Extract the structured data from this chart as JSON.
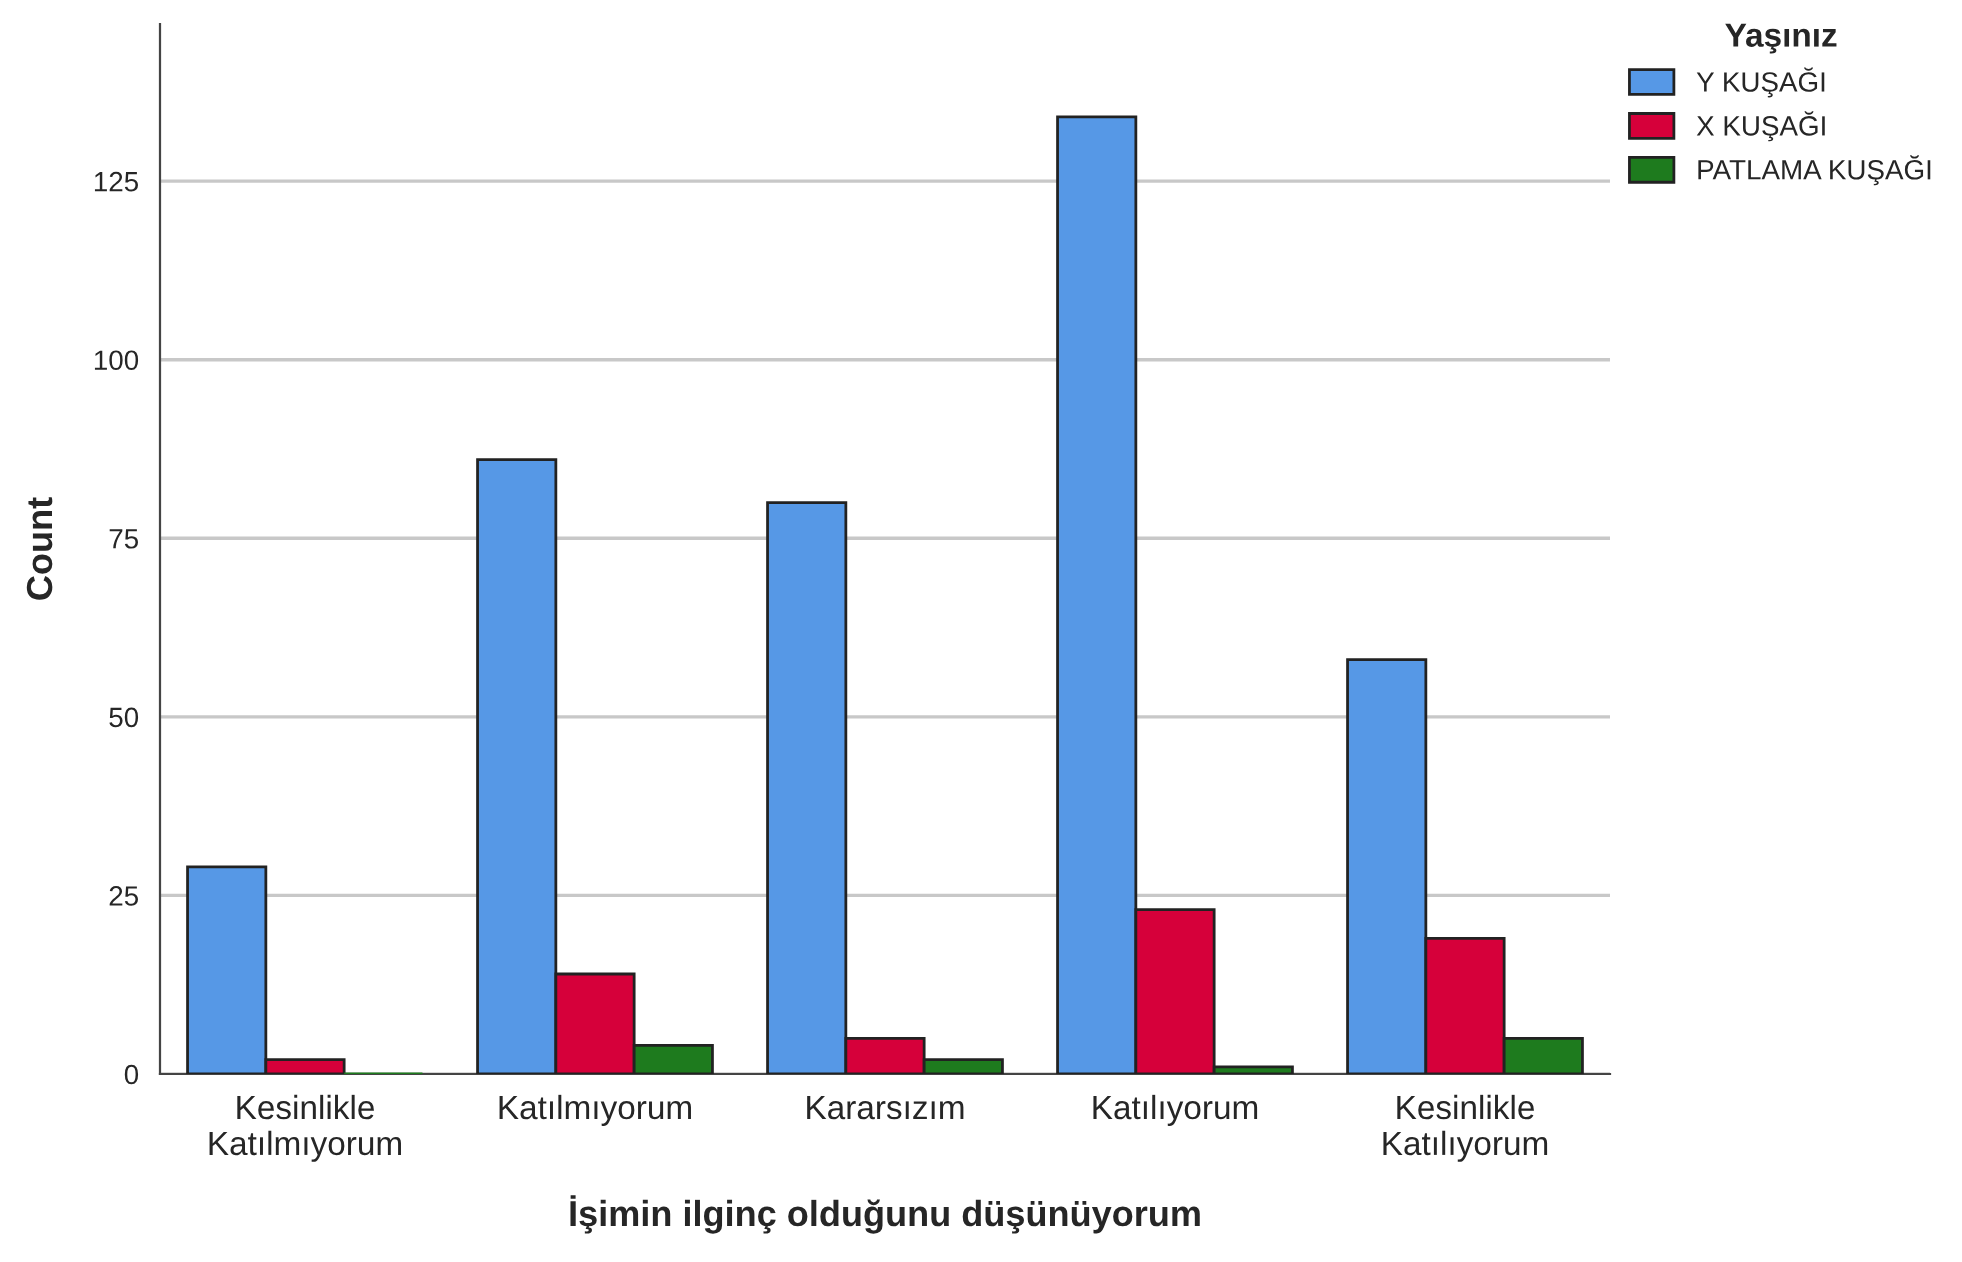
{
  "chart_data": {
    "type": "bar",
    "xlabel": "İşimin ilginç olduğunu düşünüyorum",
    "ylabel": "Count",
    "legend_title": "Yaşınız",
    "categories": [
      "Kesinlikle\nKatılmıyorum",
      "Katılmıyorum",
      "Kararsızım",
      "Katılıyorum",
      "Kesinlikle\nKatılıyorum"
    ],
    "series": [
      {
        "name": "Y KUŞAĞI",
        "color": "#5698e6",
        "values": [
          29,
          86,
          80,
          134,
          58
        ]
      },
      {
        "name": "X KUŞAĞI",
        "color": "#d6003a",
        "values": [
          2,
          14,
          5,
          23,
          19
        ]
      },
      {
        "name": "PATLAMA KUŞAĞI",
        "color": "#1e7b1e",
        "values": [
          0,
          4,
          2,
          1,
          5
        ]
      }
    ],
    "ylim": [
      0,
      147
    ],
    "yticks": [
      0,
      25,
      50,
      75,
      100,
      125
    ],
    "grid": "y",
    "legend": "top right"
  }
}
